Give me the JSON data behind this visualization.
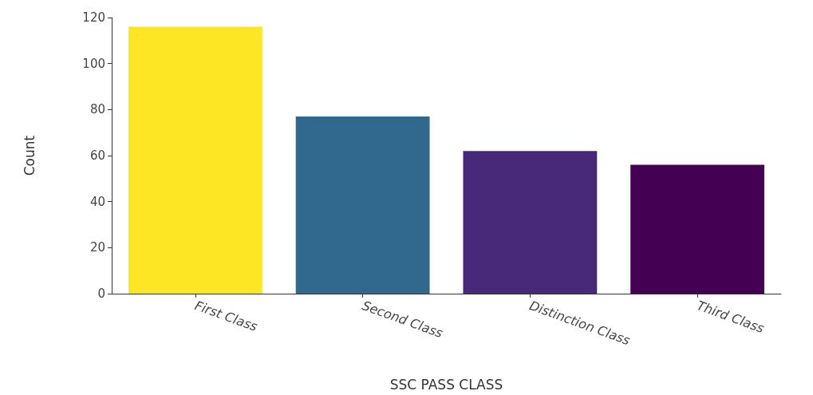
{
  "chart_data": {
    "type": "bar",
    "xlabel": "SSC PASS CLASS",
    "ylabel": "Count",
    "categories": [
      "First Class",
      "Second Class",
      "Distinction Class",
      "Third Class"
    ],
    "values": [
      116,
      77,
      62,
      56
    ],
    "colors": [
      "#fde725",
      "#31688e",
      "#482878",
      "#440154"
    ],
    "ylim": [
      0,
      120
    ],
    "yticks": [
      0,
      20,
      40,
      60,
      80,
      100,
      120
    ],
    "grid": false
  }
}
